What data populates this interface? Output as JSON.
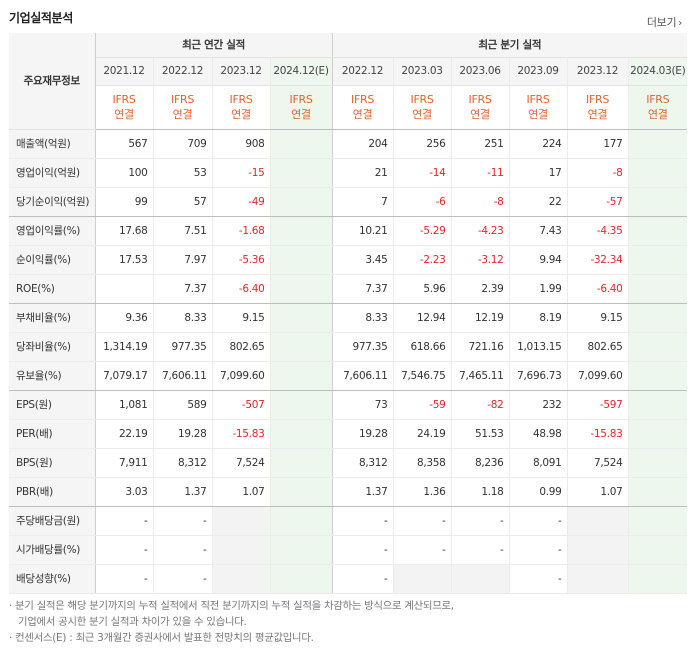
{
  "header": {
    "title": "기업실적분석",
    "more_label": "더보기",
    "more_chevron": "›"
  },
  "table": {
    "corner_label": "주요재무정보",
    "group_annual": "최근 연간 실적",
    "group_quarterly": "최근 분기 실적",
    "annual_periods": [
      "2021.12",
      "2022.12",
      "2023.12",
      "2024.12(E)"
    ],
    "quarterly_periods": [
      "2022.12",
      "2023.03",
      "2023.06",
      "2023.09",
      "2023.12",
      "2024.03(E)"
    ],
    "basis_top": "IFRS",
    "basis_bottom": "연결",
    "rows": [
      {
        "label": "매출액(억원)",
        "values": [
          "567",
          "709",
          "908",
          "",
          "204",
          "256",
          "251",
          "224",
          "177",
          ""
        ]
      },
      {
        "label": "영업이익(억원)",
        "values": [
          "100",
          "53",
          "-15",
          "",
          "21",
          "-14",
          "-11",
          "17",
          "-8",
          ""
        ]
      },
      {
        "label": "당기순이익(억원)",
        "values": [
          "99",
          "57",
          "-49",
          "",
          "7",
          "-6",
          "-8",
          "22",
          "-57",
          ""
        ]
      },
      {
        "label": "영업이익률(%)",
        "values": [
          "17.68",
          "7.51",
          "-1.68",
          "",
          "10.21",
          "-5.29",
          "-4.23",
          "7.43",
          "-4.35",
          ""
        ]
      },
      {
        "label": "순이익률(%)",
        "values": [
          "17.53",
          "7.97",
          "-5.36",
          "",
          "3.45",
          "-2.23",
          "-3.12",
          "9.94",
          "-32.34",
          ""
        ]
      },
      {
        "label": "ROE(%)",
        "values": [
          "",
          "7.37",
          "-6.40",
          "",
          "7.37",
          "5.96",
          "2.39",
          "1.99",
          "-6.40",
          ""
        ]
      },
      {
        "label": "부채비율(%)",
        "values": [
          "9.36",
          "8.33",
          "9.15",
          "",
          "8.33",
          "12.94",
          "12.19",
          "8.19",
          "9.15",
          ""
        ]
      },
      {
        "label": "당좌비율(%)",
        "values": [
          "1,314.19",
          "977.35",
          "802.65",
          "",
          "977.35",
          "618.66",
          "721.16",
          "1,013.15",
          "802.65",
          ""
        ]
      },
      {
        "label": "유보율(%)",
        "values": [
          "7,079.17",
          "7,606.11",
          "7,099.60",
          "",
          "7,606.11",
          "7,546.75",
          "7,465.11",
          "7,696.73",
          "7,099.60",
          ""
        ]
      },
      {
        "label": "EPS(원)",
        "values": [
          "1,081",
          "589",
          "-507",
          "",
          "73",
          "-59",
          "-82",
          "232",
          "-597",
          ""
        ]
      },
      {
        "label": "PER(배)",
        "values": [
          "22.19",
          "19.28",
          "-15.83",
          "",
          "19.28",
          "24.19",
          "51.53",
          "48.98",
          "-15.83",
          ""
        ]
      },
      {
        "label": "BPS(원)",
        "values": [
          "7,911",
          "8,312",
          "7,524",
          "",
          "8,312",
          "8,358",
          "8,236",
          "8,091",
          "7,524",
          ""
        ]
      },
      {
        "label": "PBR(배)",
        "values": [
          "3.03",
          "1.37",
          "1.07",
          "",
          "1.37",
          "1.36",
          "1.18",
          "0.99",
          "1.07",
          ""
        ]
      },
      {
        "label": "주당배당금(원)",
        "values": [
          "-",
          "-",
          "",
          "",
          "-",
          "-",
          "-",
          "-",
          "",
          ""
        ]
      },
      {
        "label": "시가배당률(%)",
        "values": [
          "-",
          "-",
          "",
          "",
          "-",
          "-",
          "-",
          "-",
          "",
          ""
        ]
      },
      {
        "label": "배당성향(%)",
        "values": [
          "-",
          "-",
          "",
          "",
          "-",
          "",
          "",
          "-",
          "",
          ""
        ]
      }
    ]
  },
  "notes": {
    "line1": "· 분기 실적은 해당 분기까지의 누적 실적에서 직전 분기까지의 누적 실적을 차감하는 방식으로 계산되므로,",
    "line1b": "기업에서 공시한 분기 실적과 차이가 있을 수 있습니다.",
    "line2": "· 컨센서스(E) : 최근 3개월간 증권사에서 발표한 전망치의 평균값입니다."
  },
  "colors": {
    "negative": "#e5252a",
    "basis": "#e2632b",
    "estimate_bg": "#eef7ee"
  }
}
